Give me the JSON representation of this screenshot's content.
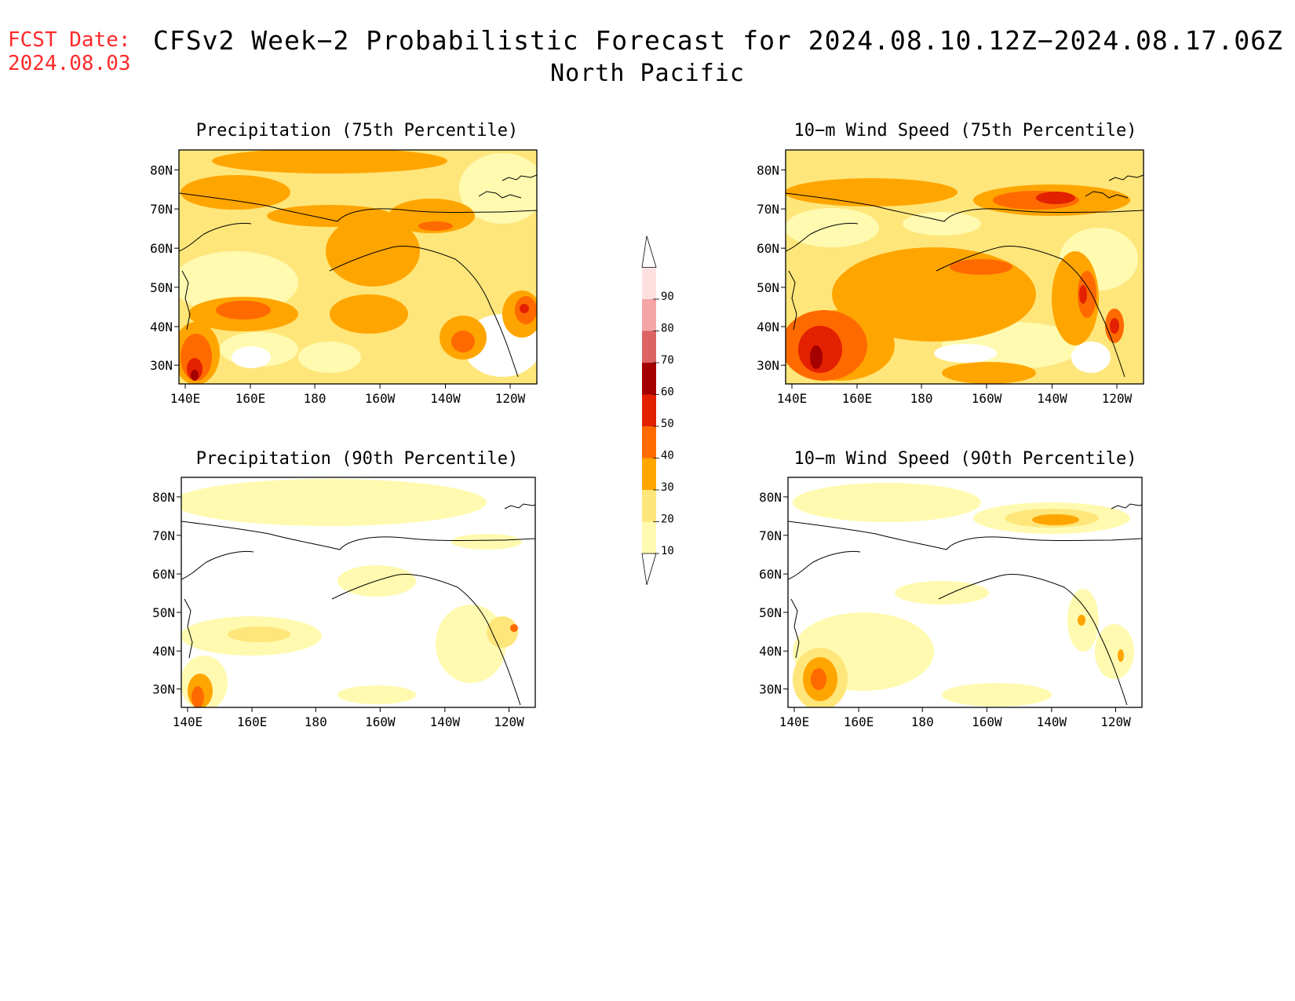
{
  "header": {
    "fcst_label": "FCST Date:",
    "fcst_date": "2024.08.03",
    "title": "CFSv2 Week−2 Probabilistic Forecast for 2024.08.10.12Z−2024.08.17.06Z",
    "subtitle": "North Pacific"
  },
  "panels": [
    {
      "title": "Precipitation (75th Percentile)"
    },
    {
      "title": "10−m Wind Speed (75th Percentile)"
    },
    {
      "title": "Precipitation (90th Percentile)"
    },
    {
      "title": "10−m Wind Speed (90th Percentile)"
    }
  ],
  "axes": {
    "lat_labels": [
      "80N",
      "70N",
      "60N",
      "50N",
      "40N",
      "30N"
    ],
    "lon_labels": [
      "140E",
      "160E",
      "180",
      "160W",
      "140W",
      "120W"
    ]
  },
  "colorbar": {
    "levels": [
      "10",
      "20",
      "30",
      "40",
      "50",
      "60",
      "70",
      "80",
      "90"
    ],
    "colors": [
      "#fffab0",
      "#ffe67a",
      "#ffa500",
      "#ff6a00",
      "#e32000",
      "#a50000",
      "#dc6464",
      "#f5a5a5",
      "#ffe0e0"
    ]
  }
}
